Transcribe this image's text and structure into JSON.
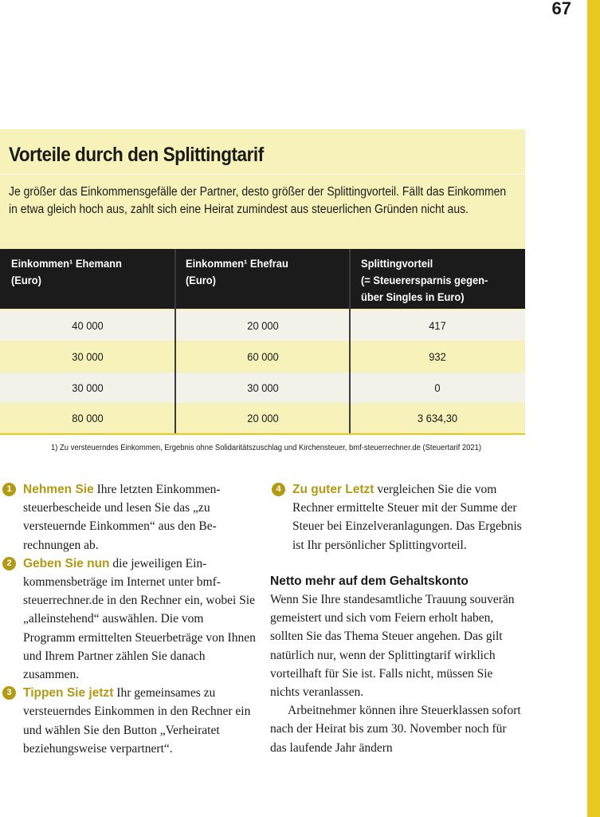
{
  "page_number": "67",
  "box": {
    "title": "Vorteile durch den Splittingtarif",
    "intro": "Je größer das Einkommensgefälle der Partner, desto größer der Splittingvorteil. Fällt das Einkommen in etwa gleich hoch aus, zahlt sich eine Heirat zumindest aus steuerlichen Gründen nicht aus."
  },
  "table": {
    "headers": [
      [
        "Einkommen¹ Ehemann",
        "(Euro)"
      ],
      [
        "Einkommen¹ Ehefrau",
        "(Euro)"
      ],
      [
        "Splittingvorteil",
        "(= Steuerersparnis gegen-",
        "über Singles in Euro)"
      ]
    ],
    "rows": [
      [
        "40 000",
        "20 000",
        "417"
      ],
      [
        "30 000",
        "60 000",
        "932"
      ],
      [
        "30 000",
        "30 000",
        "0"
      ],
      [
        "80 000",
        "20 000",
        "3 634,30"
      ]
    ]
  },
  "footnote": "1) Zu versteuerndes Einkommen, Ergebnis ohne Solidaritätszuschlag und Kirchensteuer, bmf-steuerrechner.de (Steuertarif 2021)",
  "steps": [
    {
      "num": "1",
      "lead": "Nehmen Sie",
      "text": " Ihre letzten Einkommen­steuerbescheide und lesen Sie das „zu versteuernde Einkommen“ aus den Be­rechnungen ab."
    },
    {
      "num": "2",
      "lead": "Geben Sie nun",
      "text": " die jeweiligen Ein­kommensbeträge im Internet unter bmf-steuerrechner.de in den Rechner ein, wobei Sie „alleinstehend“ auswäh­len. Die vom Programm ermittelten Steuerbeträge von Ihnen und Ihrem Partner zählen Sie danach zusammen."
    },
    {
      "num": "3",
      "lead": "Tippen Sie jetzt",
      "text": " Ihr gemeinsames zu versteuerndes Einkommen in den Rechner ein und wählen Sie den But­ton „Verheiratet beziehungsweise ver­partnert“."
    },
    {
      "num": "4",
      "lead": "Zu guter Letzt",
      "text": " vergleichen Sie die vom Rechner ermittelte Steuer mit der Summe der Steuer bei Einzelver­anlagungen. Das Ergebnis ist Ihr per­sönlicher Splittingvorteil."
    }
  ],
  "section": {
    "heading": "Netto mehr auf dem Gehaltskonto",
    "para1": "Wenn Sie Ihre standesamtliche Trauung souverän gemeistert und sich vom Feiern erholt haben, sollten Sie das Thema Steuer angehen. Das gilt natürlich nur, wenn der Splittingtarif wirklich vorteilhaft für Sie ist. Falls nicht, müssen Sie nichts veranlassen.",
    "para2": "Arbeitnehmer können ihre Steuerklas­sen sofort nach der Heirat bis zum 30. No­vember noch für das laufende Jahr ändern"
  },
  "colors": {
    "accent": "#b39a12",
    "box_bg": "#f7f2b9",
    "side_bar": "#e9c81f",
    "header_bg": "#1b1b1b"
  }
}
